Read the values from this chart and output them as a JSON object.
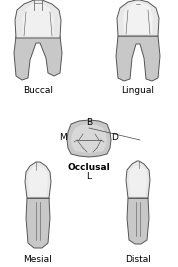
{
  "background_color": "#ffffff",
  "tooth_fill": "#c8c8c8",
  "tooth_crown_fill": "#e8e8e8",
  "tooth_outline": "#555555",
  "tooth_detail": "#444444",
  "root_fill": "#b8b8b8",
  "labels": {
    "buccal": "Buccal",
    "lingual": "Lingual",
    "occlusal": "Occlusal",
    "mesial": "Mesial",
    "distal": "Distal",
    "B": "B",
    "M": "M",
    "D": "D",
    "L": "L"
  },
  "label_fontsize": 6.5,
  "direction_fontsize": 6.5,
  "fig_width": 1.78,
  "fig_height": 2.67
}
